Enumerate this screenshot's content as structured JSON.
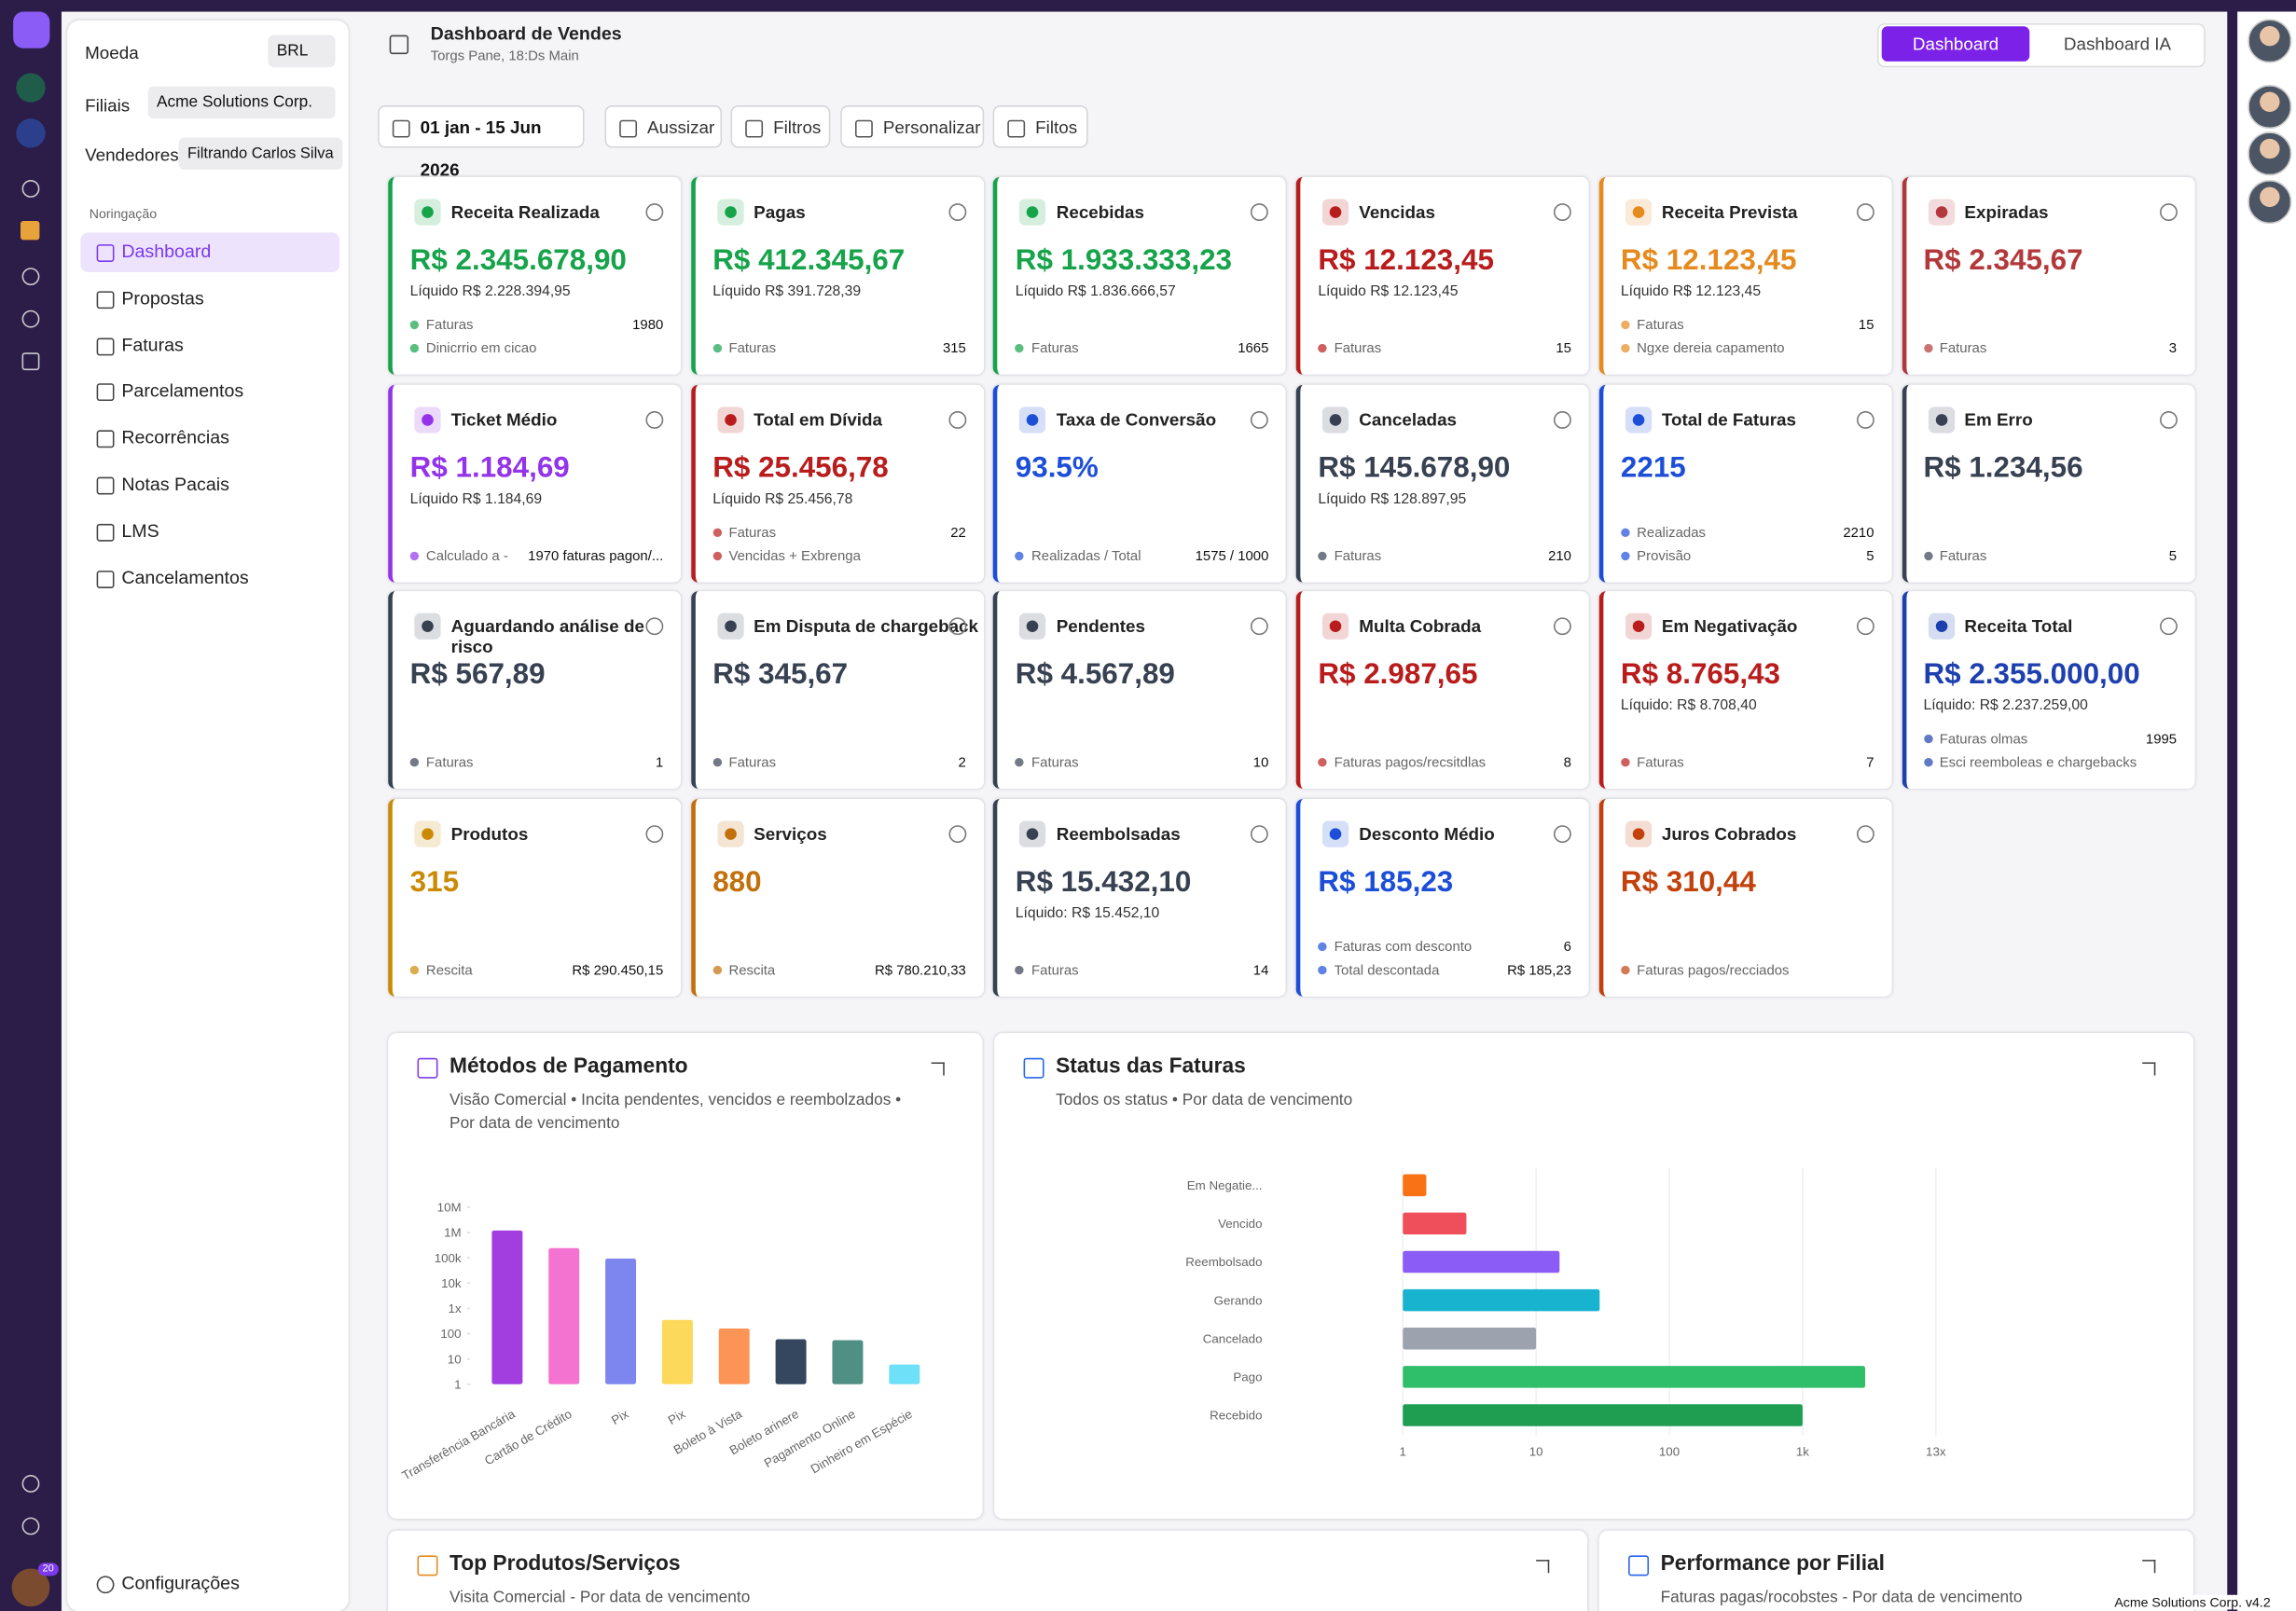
{
  "sidebar": {
    "currency_label": "Moeda",
    "currency": "BRL",
    "branches_label": "Filiais",
    "branch": "Acme Solutions Corp.",
    "sellers_label": "Vendedores",
    "seller": "Filtrando Carlos Silva",
    "nav_title": "Noringação",
    "nav": [
      "Dashboard",
      "Propostas",
      "Faturas",
      "Parcelamentos",
      "Recorrências",
      "Notas Pacais",
      "LMS",
      "Cancelamentos"
    ],
    "settings": "Configurações",
    "badge": "20"
  },
  "header": {
    "title": "Dashboard de Vendes",
    "subtitle": "Torgs Pane, 18:Ds Main",
    "tabs": [
      "Dashboard",
      "Dashboard IA"
    ]
  },
  "filters": [
    "01 jan - 15 Jun 2026",
    "Aussizar",
    "Filtros",
    "Personalizar",
    "Filtos"
  ],
  "cards": [
    {
      "title": "Receita Realizada",
      "value": "R$ 2.345.678,90",
      "sub": "Líquido  R$ 2.228.394,95",
      "color": "#16a34a",
      "rows": [
        {
          "label": "Faturas",
          "value": "1980"
        },
        {
          "label": "Dinicrrio em cicao"
        }
      ]
    },
    {
      "title": "Pagas",
      "value": "R$ 412.345,67",
      "sub": "Líquido  R$ 391.728,39",
      "color": "#16a34a",
      "rows": [
        {
          "label": "Faturas",
          "value": "315"
        }
      ]
    },
    {
      "title": "Recebidas",
      "value": "R$ 1.933.333,23",
      "sub": "Líquido  R$ 1.836.666,57",
      "color": "#16a34a",
      "rows": [
        {
          "label": "Faturas",
          "value": "1665"
        }
      ]
    },
    {
      "title": "Vencidas",
      "value": "R$ 12.123,45",
      "sub": "Líquido  R$ 12.123,45",
      "color": "#b91c1c",
      "rows": [
        {
          "label": "Faturas",
          "value": "15"
        }
      ]
    },
    {
      "title": "Receita Prevista",
      "value": "R$ 12.123,45",
      "sub": "Líquido  R$ 12.123,45",
      "color": "#e58a1f",
      "rows": [
        {
          "label": "Faturas",
          "value": "15"
        },
        {
          "label": "Ngxe dereia capamento"
        }
      ]
    },
    {
      "title": "Expiradas",
      "value": "R$ 2.345,67",
      "color": "#b3383b",
      "rows": [
        {
          "label": "Faturas",
          "value": "3"
        }
      ]
    },
    {
      "title": "Ticket Médio",
      "value": "R$ 1.184,69",
      "sub": "Líquido  R$ 1.184,69",
      "color": "#9333ea",
      "rows": [
        {
          "label": "Calculado a -",
          "value": "1970 faturas pagon/..."
        }
      ]
    },
    {
      "title": "Total em Dívida",
      "value": "R$ 25.456,78",
      "sub": "Líquido  R$ 25.456,78",
      "color": "#b91c1c",
      "rows": [
        {
          "label": "Faturas",
          "value": "22"
        },
        {
          "label": "Vencidas + Exbrenga"
        }
      ]
    },
    {
      "title": "Taxa de Conversão",
      "value": "93.5%",
      "color": "#1d4ed8",
      "rows": [
        {
          "label": "Realizadas / Total",
          "value": "1575 / 1000"
        }
      ]
    },
    {
      "title": "Canceladas",
      "value": "R$ 145.678,90",
      "sub": "Líquido  R$ 128.897,95",
      "color": "#374151",
      "rows": [
        {
          "label": "Faturas",
          "value": "210"
        }
      ]
    },
    {
      "title": "Total de Faturas",
      "value": "2215",
      "color": "#1d4ed8",
      "rows": [
        {
          "label": "Realizadas",
          "value": "2210"
        },
        {
          "label": "Provisão",
          "value": "5"
        }
      ]
    },
    {
      "title": "Em Erro",
      "value": "R$ 1.234,56",
      "color": "#374151",
      "rows": [
        {
          "label": "Faturas",
          "value": "5"
        }
      ]
    },
    {
      "title": "Aguardando análise de risco",
      "value": "R$ 567,89",
      "color": "#374151",
      "rows": [
        {
          "label": "Faturas",
          "value": "1"
        }
      ]
    },
    {
      "title": "Em Disputa de chargeback",
      "value": "R$ 345,67",
      "color": "#374151",
      "rows": [
        {
          "label": "Faturas",
          "value": "2"
        }
      ]
    },
    {
      "title": "Pendentes",
      "value": "R$ 4.567,89",
      "color": "#374151",
      "rows": [
        {
          "label": "Faturas",
          "value": "10"
        }
      ]
    },
    {
      "title": "Multa Cobrada",
      "value": "R$ 2.987,65",
      "color": "#b91c1c",
      "rows": [
        {
          "label": "Faturas pagos/recsitdlas",
          "value": "8"
        }
      ]
    },
    {
      "title": "Em Negativação",
      "value": "R$ 8.765,43",
      "sub": "Líquido: R$ 8.708,40",
      "color": "#b91c1c",
      "rows": [
        {
          "label": "Faturas",
          "value": "7"
        }
      ]
    },
    {
      "title": "Receita Total",
      "value": "R$ 2.355.000,00",
      "sub": "Líquido: R$ 2.237.259,00",
      "color": "#1e40af",
      "rows": [
        {
          "label": "Faturas olmas",
          "value": "1995"
        },
        {
          "label": "Esci reemboleas e chargebacks"
        }
      ]
    },
    {
      "title": "Produtos",
      "value": "315",
      "color": "#ca8a04",
      "rows": [
        {
          "label": "Rescita",
          "value": "R$ 290.450,15"
        }
      ]
    },
    {
      "title": "Serviços",
      "value": "880",
      "color": "#c2700c",
      "rows": [
        {
          "label": "Rescita",
          "value": "R$ 780.210,33"
        }
      ]
    },
    {
      "title": "Reembolsadas",
      "value": "R$ 15.432,10",
      "sub": "Líquido: R$ 15.452,10",
      "color": "#374151",
      "rows": [
        {
          "label": "Faturas",
          "value": "14"
        }
      ]
    },
    {
      "title": "Desconto Médio",
      "value": "R$ 185,23",
      "color": "#1d4ed8",
      "rows": [
        {
          "label": "Faturas com desconto",
          "value": "6"
        },
        {
          "label": "Total descontada",
          "value": "R$ 185,23"
        }
      ]
    },
    {
      "title": "Juros Cobrados",
      "value": "R$ 310,44",
      "color": "#c2410c",
      "rows": [
        {
          "label": "Faturas pagos/recciados"
        }
      ]
    }
  ],
  "chart_data": [
    {
      "type": "bar",
      "title": "Métodos de Pagamento",
      "subtitle": "Visão Comercial • Incita pendentes, vencidos e reembolzados • Por data de vencimento",
      "log": true,
      "grid": false,
      "categories": [
        "Transferência Bancária",
        "Cartão de Crédito",
        "Pix",
        "Pix",
        "Boleto à Vista",
        "Boleto arinere",
        "Pagamento Online",
        "Dinheiro em Espécie"
      ],
      "values": [
        1200000,
        240000,
        93000,
        350,
        160,
        60,
        55,
        6
      ],
      "colors": [
        "#a23ee0",
        "#f472d0",
        "#7c86ee",
        "#fcd95a",
        "#fb9456",
        "#34475e",
        "#4f8f84",
        "#6ee0f7"
      ],
      "ylim": [
        1,
        10000000
      ],
      "yticks": [
        1,
        10,
        100,
        {
          "value": 1000,
          "label": "1x"
        },
        {
          "value": 10000,
          "label": "10k"
        },
        {
          "value": 100000,
          "label": "100k"
        },
        {
          "value": 1000000,
          "label": "1M"
        },
        {
          "value": 10000000,
          "label": "10M"
        }
      ]
    },
    {
      "type": "hbar",
      "title": "Status das Faturas",
      "subtitle": "Todos os status • Por data de vencimento",
      "log": true,
      "grid": true,
      "categories": [
        "Em Negatie...",
        "Vencido",
        "Reembolsado",
        "Gerando",
        "Cancelado",
        "Pago",
        "Recebido"
      ],
      "values": [
        1.5,
        3,
        15,
        30,
        10,
        2950,
        1000
      ],
      "colors": [
        "#f97316",
        "#ef4f5a",
        "#8b5cf6",
        "#17b3cf",
        "#9ca3af",
        "#2fbf6a",
        "#1f9e52"
      ],
      "xlim": [
        1,
        10000
      ],
      "xticks": [
        1,
        10,
        100,
        {
          "value": 1000,
          "label": "1k"
        },
        {
          "value": 10000,
          "label": "13x"
        }
      ]
    }
  ],
  "bottom_panels": [
    {
      "title": "Top Produtos/Serviços",
      "subtitle": "Visita Comercial - Por data de vencimento"
    },
    {
      "title": "Performance por Filial",
      "subtitle": "Faturas pagas/rocobstes - Por data de vencimento"
    }
  ],
  "footer": "Acme Solutions Corp. v4.2"
}
